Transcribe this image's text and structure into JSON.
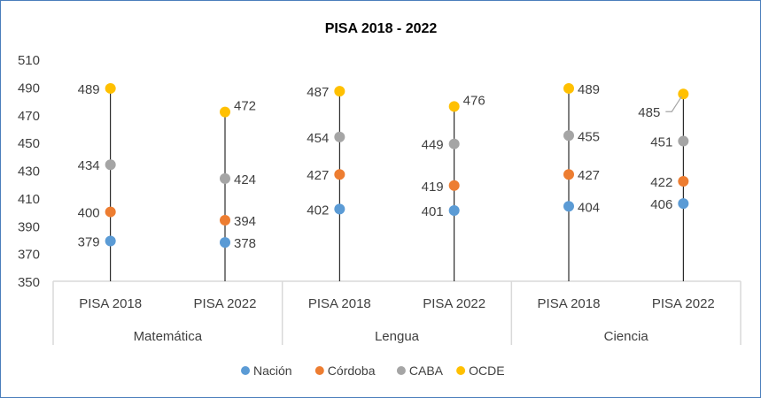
{
  "chart_data": {
    "type": "scatter",
    "title": "PISA 2018 - 2022",
    "xlabel": "",
    "ylabel": "",
    "ylim": [
      350,
      510
    ],
    "yticks": [
      350,
      370,
      390,
      410,
      430,
      450,
      470,
      490,
      510
    ],
    "grid": false,
    "legend_position": "bottom",
    "groups": [
      {
        "name": "Matemática",
        "categories": [
          "PISA 2018",
          "PISA 2022"
        ]
      },
      {
        "name": "Lengua",
        "categories": [
          "PISA 2018",
          "PISA 2022"
        ]
      },
      {
        "name": "Ciencia",
        "categories": [
          "PISA 2018",
          "PISA 2022"
        ]
      }
    ],
    "series": [
      {
        "name": "Nación",
        "color": "#5b9bd5",
        "values": [
          379,
          378,
          402,
          401,
          404,
          406
        ],
        "label_side": [
          "left",
          "right",
          "left",
          "left",
          "right",
          "left"
        ]
      },
      {
        "name": "Córdoba",
        "color": "#ed7d31",
        "values": [
          400,
          394,
          427,
          419,
          427,
          422
        ],
        "label_side": [
          "left",
          "right",
          "left",
          "left",
          "right",
          "left"
        ]
      },
      {
        "name": "CABA",
        "color": "#a5a5a5",
        "values": [
          434,
          424,
          454,
          449,
          455,
          451
        ],
        "label_side": [
          "left",
          "right",
          "left",
          "left",
          "right",
          "left"
        ]
      },
      {
        "name": "OCDE",
        "color": "#ffc000",
        "values": [
          489,
          472,
          487,
          476,
          489,
          485
        ],
        "label_side": [
          "left",
          "right",
          "left",
          "right",
          "right",
          "left"
        ]
      }
    ]
  }
}
